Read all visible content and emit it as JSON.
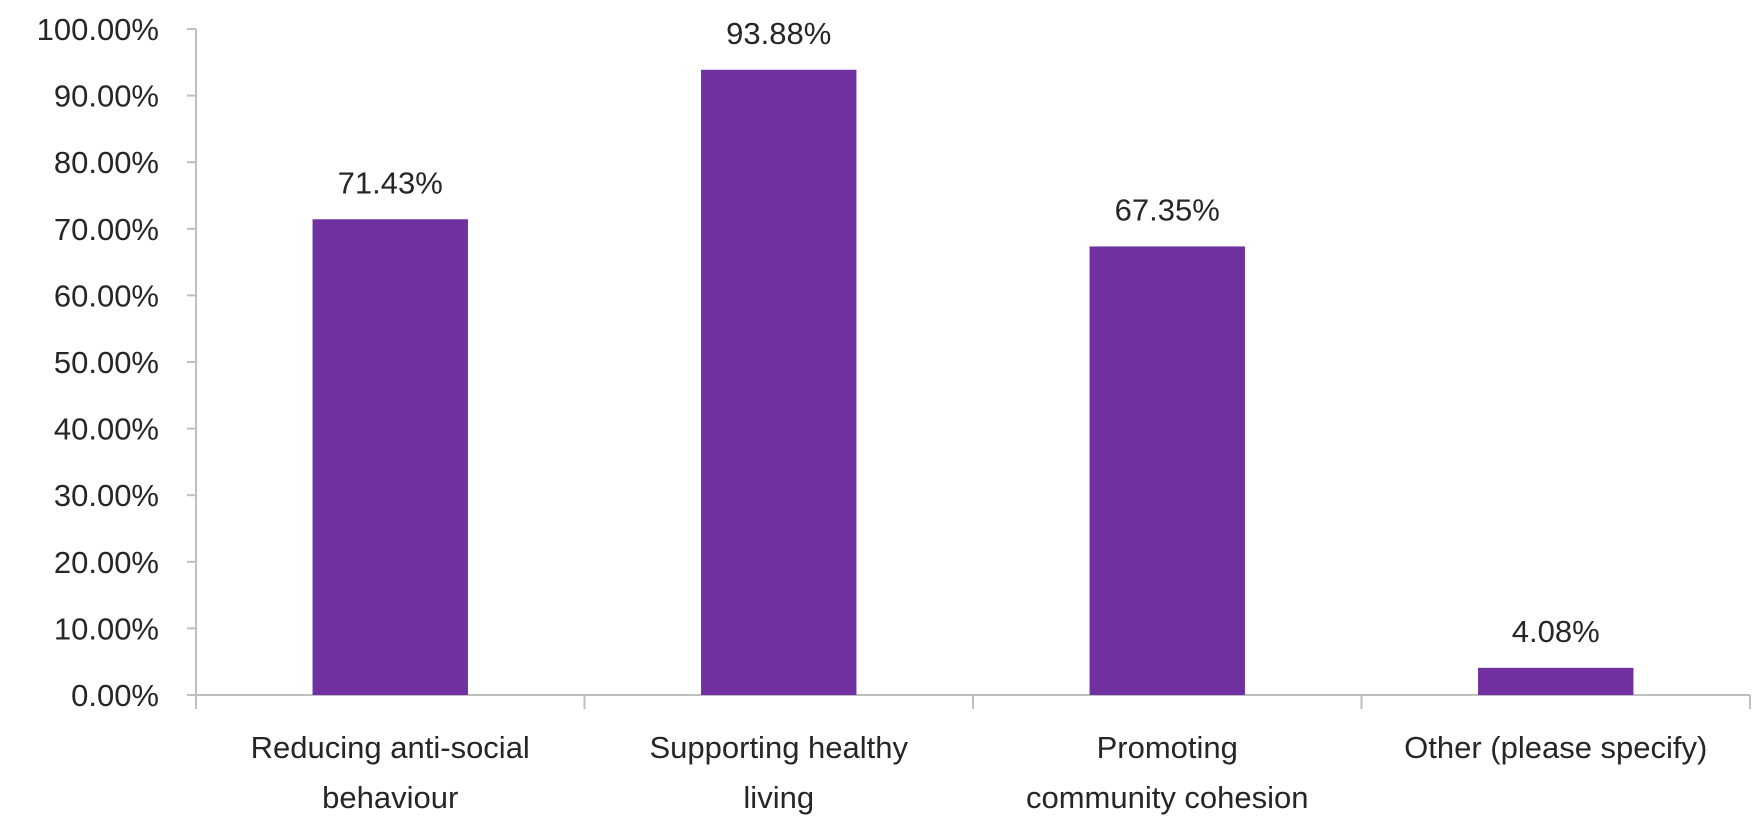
{
  "chart_data": {
    "type": "bar",
    "categories": [
      [
        "Reducing anti-social",
        "behaviour"
      ],
      [
        "Supporting healthy",
        "living"
      ],
      [
        "Promoting",
        "community cohesion"
      ],
      [
        "Other (please specify)"
      ]
    ],
    "values": [
      71.43,
      93.88,
      67.35,
      4.08
    ],
    "data_labels": [
      "71.43%",
      "93.88%",
      "67.35%",
      "4.08%"
    ],
    "y_ticks": [
      "0.00%",
      "10.00%",
      "20.00%",
      "30.00%",
      "40.00%",
      "50.00%",
      "60.00%",
      "70.00%",
      "80.00%",
      "90.00%",
      "100.00%"
    ],
    "ylim": [
      0,
      100
    ],
    "title": "",
    "xlabel": "",
    "ylabel": "",
    "grid": false,
    "legend": "none",
    "bar_color": "#7030a0"
  }
}
